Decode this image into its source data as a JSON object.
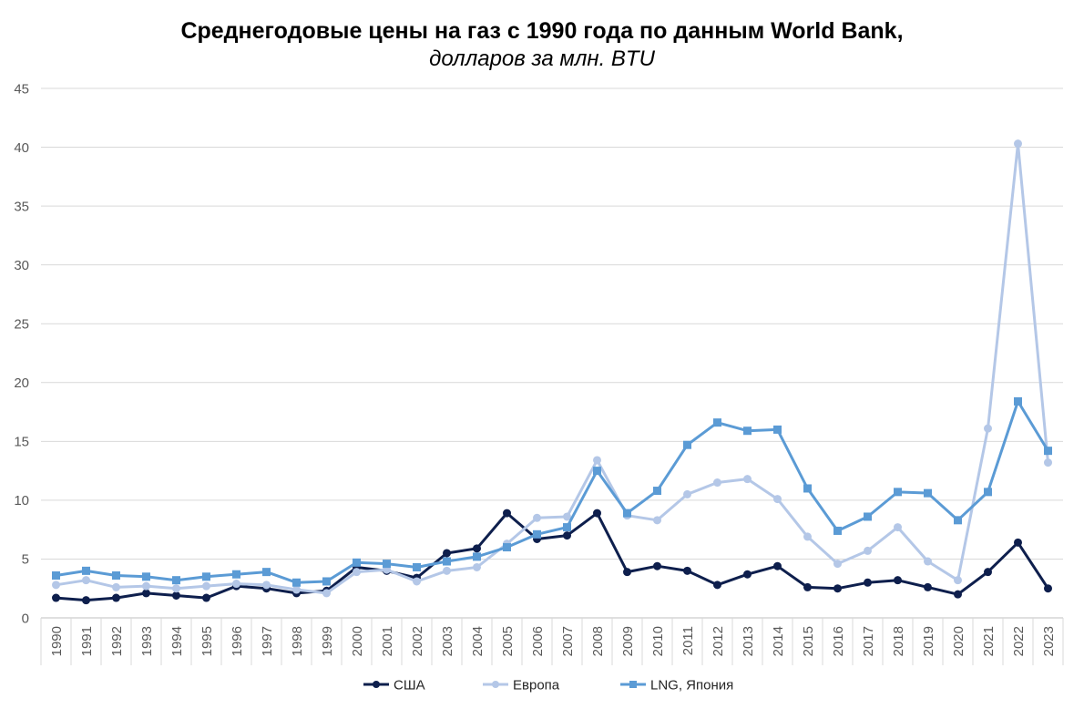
{
  "chart_data": {
    "type": "line",
    "title": "Среднегодовые цены на газ с 1990 года по данным World Bank,",
    "subtitle": "долларов за млн. BTU",
    "xlabel": "",
    "ylabel": "",
    "ylim": [
      0,
      45
    ],
    "yticks": [
      0,
      5,
      10,
      15,
      20,
      25,
      30,
      35,
      40,
      45
    ],
    "grid": true,
    "legend": "bottom",
    "categories": [
      "1990",
      "1991",
      "1992",
      "1993",
      "1994",
      "1995",
      "1996",
      "1997",
      "1998",
      "1999",
      "2000",
      "2001",
      "2002",
      "2003",
      "2004",
      "2005",
      "2006",
      "2007",
      "2008",
      "2009",
      "2010",
      "2011",
      "2012",
      "2013",
      "2014",
      "2015",
      "2016",
      "2017",
      "2018",
      "2019",
      "2020",
      "2021",
      "2022",
      "2023"
    ],
    "series": [
      {
        "name": "США",
        "color": "#0e1f4d",
        "marker": "circle",
        "values": [
          1.7,
          1.5,
          1.7,
          2.1,
          1.9,
          1.7,
          2.7,
          2.5,
          2.1,
          2.3,
          4.3,
          4.0,
          3.4,
          5.5,
          5.9,
          8.9,
          6.7,
          7.0,
          8.9,
          3.9,
          4.4,
          4.0,
          2.8,
          3.7,
          4.4,
          2.6,
          2.5,
          3.0,
          3.2,
          2.6,
          2.0,
          3.9,
          6.4,
          2.5
        ]
      },
      {
        "name": "Европа",
        "color": "#b4c7e7",
        "marker": "circle",
        "values": [
          2.8,
          3.2,
          2.6,
          2.7,
          2.5,
          2.7,
          2.9,
          2.8,
          2.4,
          2.1,
          3.9,
          4.1,
          3.1,
          4.0,
          4.3,
          6.3,
          8.5,
          8.6,
          13.4,
          8.7,
          8.3,
          10.5,
          11.5,
          11.8,
          10.1,
          6.9,
          4.6,
          5.7,
          7.7,
          4.8,
          3.2,
          16.1,
          40.3,
          13.2
        ]
      },
      {
        "name": "LNG, Япония",
        "color": "#5b9bd5",
        "marker": "square",
        "values": [
          3.6,
          4.0,
          3.6,
          3.5,
          3.2,
          3.5,
          3.7,
          3.9,
          3.0,
          3.1,
          4.7,
          4.6,
          4.3,
          4.8,
          5.2,
          6.0,
          7.1,
          7.7,
          12.5,
          8.9,
          10.8,
          14.7,
          16.6,
          15.9,
          16.0,
          11.0,
          7.4,
          8.6,
          10.7,
          10.6,
          8.3,
          10.7,
          18.4,
          14.2
        ]
      }
    ]
  }
}
